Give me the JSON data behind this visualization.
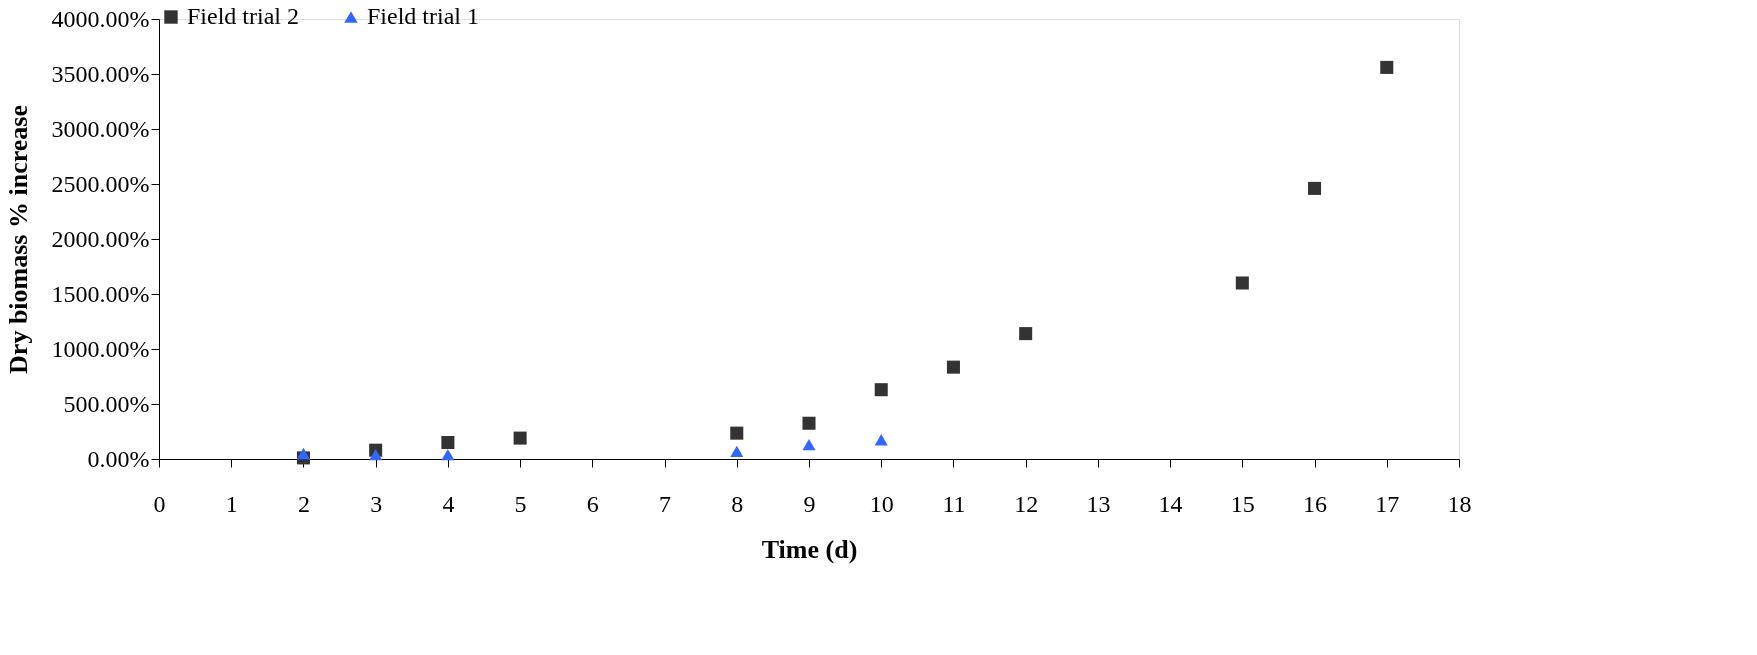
{
  "chart_data": {
    "type": "scatter",
    "xlabel": "Time (d)",
    "ylabel": "Dry biomass % increase",
    "series": [
      {
        "name": "Field trial 2",
        "color": "#333333",
        "marker": "square",
        "x": [
          2,
          3,
          4,
          5,
          8,
          9,
          10,
          11,
          12,
          15,
          16,
          17
        ],
        "values": [
          10,
          80,
          150,
          190,
          235,
          325,
          630,
          835,
          1140,
          1600,
          2460,
          3560
        ]
      },
      {
        "name": "Field trial 1",
        "color": "#3366ff",
        "marker": "triangle",
        "x": [
          2,
          3,
          4,
          8,
          9,
          10
        ],
        "values": [
          50,
          40,
          40,
          70,
          130,
          175
        ]
      }
    ],
    "xlim": [
      0,
      18
    ],
    "xticks": [
      0,
      1,
      2,
      3,
      4,
      5,
      6,
      7,
      8,
      9,
      10,
      11,
      12,
      13,
      14,
      15,
      16,
      17,
      18
    ],
    "ylim": [
      0,
      4000
    ],
    "yticks": [
      {
        "value": 0,
        "label": "0.00%"
      },
      {
        "value": 500,
        "label": "500.00%"
      },
      {
        "value": 1000,
        "label": "1000.00%"
      },
      {
        "value": 1500,
        "label": "1500.00%"
      },
      {
        "value": 2000,
        "label": "2000.00%"
      },
      {
        "value": 2500,
        "label": "2500.00%"
      },
      {
        "value": 3000,
        "label": "3000.00%"
      },
      {
        "value": 3500,
        "label": "3500.00%"
      },
      {
        "value": 4000,
        "label": "4000.00%"
      }
    ],
    "grid": false,
    "legend": "top left"
  }
}
